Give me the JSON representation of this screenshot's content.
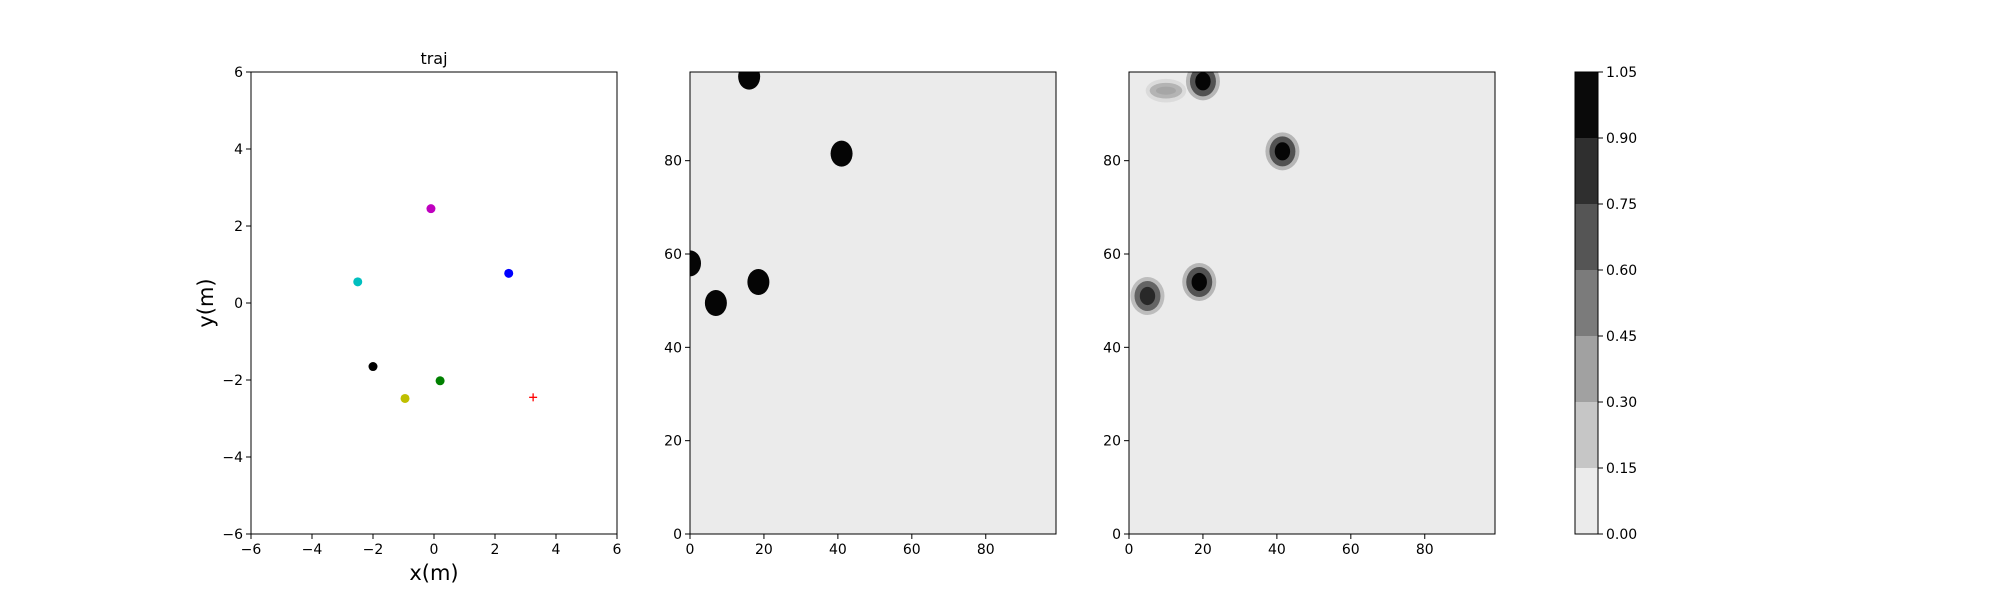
{
  "chart_data": [
    {
      "type": "scatter",
      "title": "traj",
      "xlabel": "x(m)",
      "ylabel": "y(m)",
      "xlim": [
        -6,
        6
      ],
      "ylim": [
        -6,
        6
      ],
      "xticks": [
        "−6",
        "−4",
        "−2",
        "0",
        "2",
        "4",
        "6"
      ],
      "yticks": [
        "−6",
        "−4",
        "−2",
        "0",
        "2",
        "4",
        "6"
      ],
      "points": [
        {
          "name": "magenta",
          "x": -0.1,
          "y": 2.45,
          "color": "#bf00bf",
          "marker": "o"
        },
        {
          "name": "cyan",
          "x": -2.5,
          "y": 0.55,
          "color": "#00bfbf",
          "marker": "o"
        },
        {
          "name": "blue",
          "x": 2.45,
          "y": 0.77,
          "color": "#0000ff",
          "marker": "o"
        },
        {
          "name": "black",
          "x": -2.0,
          "y": -1.65,
          "color": "#000000",
          "marker": "o"
        },
        {
          "name": "green",
          "x": 0.2,
          "y": -2.02,
          "color": "#008000",
          "marker": "o"
        },
        {
          "name": "yellow",
          "x": -0.95,
          "y": -2.48,
          "color": "#bfbf00",
          "marker": "o"
        },
        {
          "name": "goal",
          "x": 3.25,
          "y": -2.45,
          "color": "#ff0000",
          "marker": "+"
        }
      ]
    },
    {
      "type": "heatmap",
      "xlim": [
        0,
        99
      ],
      "ylim": [
        0,
        99
      ],
      "xticks": [
        "0",
        "20",
        "40",
        "60",
        "80"
      ],
      "yticks": [
        "0",
        "20",
        "40",
        "60",
        "80"
      ],
      "blobs": [
        {
          "cx": 16,
          "cy": 98,
          "value": 1.0
        },
        {
          "cx": 41,
          "cy": 81.5,
          "value": 1.0
        },
        {
          "cx": 18.5,
          "cy": 54,
          "value": 1.0
        },
        {
          "cx": 7,
          "cy": 49.5,
          "value": 1.0
        },
        {
          "cx": 0,
          "cy": 58,
          "value": 1.0
        }
      ]
    },
    {
      "type": "heatmap",
      "xlim": [
        0,
        99
      ],
      "ylim": [
        0,
        99
      ],
      "xticks": [
        "0",
        "20",
        "40",
        "60",
        "80"
      ],
      "yticks": [
        "0",
        "20",
        "40",
        "60",
        "80"
      ],
      "blobs": [
        {
          "cx": 20,
          "cy": 97,
          "value": 1.0
        },
        {
          "cx": 41.5,
          "cy": 82,
          "value": 1.0
        },
        {
          "cx": 19,
          "cy": 54,
          "value": 1.0
        },
        {
          "cx": 5,
          "cy": 51,
          "value": 0.85
        },
        {
          "cx": 10,
          "cy": 95,
          "value": 0.3
        }
      ]
    }
  ],
  "colorbar": {
    "levels": [
      "0.00",
      "0.15",
      "0.30",
      "0.45",
      "0.60",
      "0.75",
      "0.90",
      "1.05"
    ],
    "colors": [
      "#ebebeb",
      "#c6c6c6",
      "#a1a1a1",
      "#7b7b7b",
      "#555555",
      "#2f2f2f",
      "#0a0a0a"
    ]
  }
}
